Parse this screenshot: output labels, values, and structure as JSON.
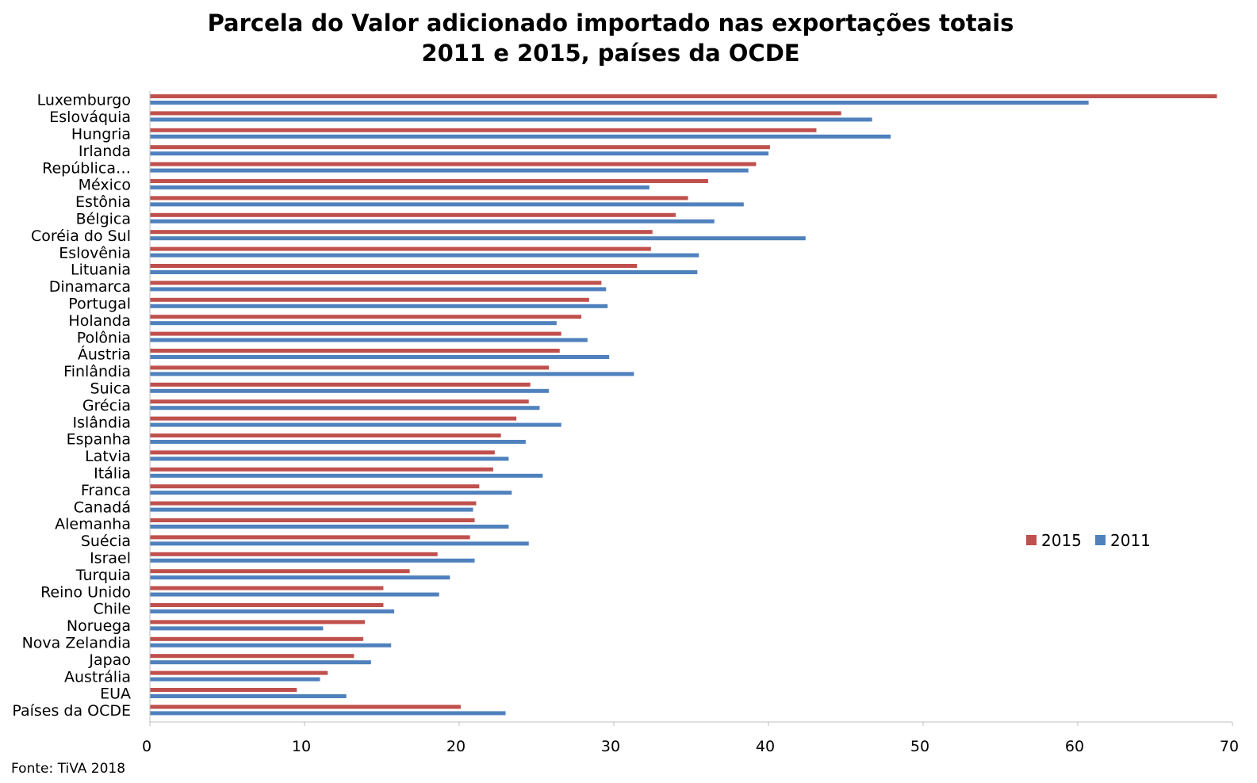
{
  "chart_data": {
    "type": "bar",
    "orientation": "horizontal",
    "title": "Parcela do Valor adicionado importado nas exportações totais",
    "subtitle": "2011 e 2015, países da OCDE",
    "xlabel": "",
    "ylabel": "",
    "xlim": [
      0,
      70
    ],
    "x_ticks": [
      0,
      10,
      20,
      30,
      40,
      50,
      60,
      70
    ],
    "grid": false,
    "legend_position": "right",
    "categories": [
      "Luxemburgo",
      "Eslováquia",
      "Hungria",
      "Irlanda",
      "República…",
      "México",
      "Estônia",
      "Bélgica",
      "Coréia do Sul",
      "Eslovênia",
      "Lituania",
      "Dinamarca",
      "Portugal",
      "Holanda",
      "Polônia",
      "Áustria",
      "Finlândia",
      "Suica",
      "Grécia",
      "Islândia",
      "Espanha",
      "Latvia",
      "Itália",
      "Franca",
      "Canadá",
      "Alemanha",
      "Suécia",
      "Israel",
      "Turquia",
      "Reino Unido",
      "Chile",
      "Noruega",
      "Nova Zelandia",
      "Japao",
      "Austrália",
      "EUA",
      "Países da OCDE"
    ],
    "series": [
      {
        "name": "2015",
        "color": "#c0504d",
        "values": [
          69.0,
          44.7,
          43.1,
          40.1,
          39.2,
          36.1,
          34.8,
          34.0,
          32.5,
          32.4,
          31.5,
          29.2,
          28.4,
          27.9,
          26.6,
          26.5,
          25.8,
          24.6,
          24.5,
          23.7,
          22.7,
          22.3,
          22.2,
          21.3,
          21.1,
          21.0,
          20.7,
          18.6,
          16.8,
          15.1,
          15.1,
          13.9,
          13.8,
          13.2,
          11.5,
          9.5,
          20.1
        ]
      },
      {
        "name": "2011",
        "color": "#4f81bd",
        "values": [
          60.7,
          46.7,
          47.9,
          40.0,
          38.7,
          32.3,
          38.4,
          36.5,
          42.4,
          35.5,
          35.4,
          29.5,
          29.6,
          26.3,
          28.3,
          29.7,
          31.3,
          25.8,
          25.2,
          26.6,
          24.3,
          23.2,
          25.4,
          23.4,
          20.9,
          23.2,
          24.5,
          21.0,
          19.4,
          18.7,
          15.8,
          11.2,
          15.6,
          14.3,
          11.0,
          12.7,
          23.0
        ]
      }
    ]
  },
  "source": "Fonte: TiVA 2018"
}
